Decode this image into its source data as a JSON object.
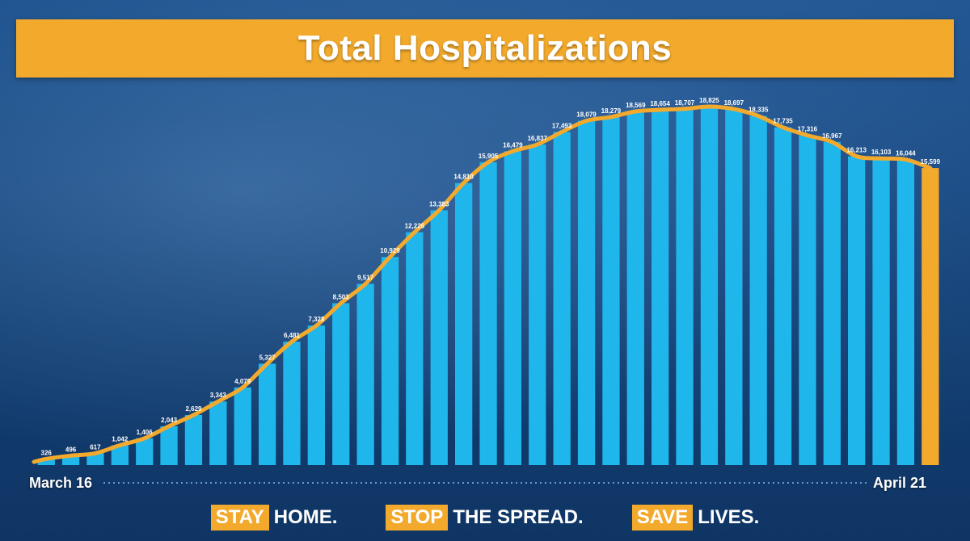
{
  "header": {
    "title": "Total Hospitalizations"
  },
  "axis": {
    "start_label": "March 16",
    "end_label": "April 21"
  },
  "slogan": [
    {
      "highlight": "STAY",
      "rest": "HOME."
    },
    {
      "highlight": "STOP",
      "rest": "THE SPREAD."
    },
    {
      "highlight": "SAVE",
      "rest": "LIVES."
    }
  ],
  "colors": {
    "bar": "#1fb6ec",
    "last_bar": "#f3aa2c",
    "trend_line": "#f3aa2c",
    "banner": "#f3aa2c"
  },
  "chart_data": {
    "type": "bar",
    "title": "Total Hospitalizations",
    "xlabel": "",
    "ylabel": "",
    "x_start": "March 16",
    "x_end": "April 21",
    "grid": false,
    "trend_line": true,
    "ylim": [
      0,
      19000
    ],
    "values": [
      326,
      496,
      617,
      1042,
      1406,
      2043,
      2629,
      3343,
      4079,
      5327,
      6481,
      7328,
      8503,
      9517,
      10929,
      12226,
      13383,
      14810,
      15905,
      16479,
      16837,
      17493,
      18079,
      18279,
      18569,
      18654,
      18707,
      18825,
      18697,
      18335,
      17735,
      17316,
      16967,
      16213,
      16103,
      16044,
      15599
    ],
    "labels": [
      "326",
      "496",
      "617",
      "1,042",
      "1,406",
      "2,043",
      "2,629",
      "3,343",
      "4,079",
      "5,327",
      "6,481",
      "7,328",
      "8,503",
      "9,517",
      "10,929",
      "12,226",
      "13,383",
      "14,810",
      "15,905",
      "16,479",
      "16,837",
      "17,493",
      "18,079",
      "18,279",
      "18,569",
      "18,654",
      "18,707",
      "18,825",
      "18,697",
      "18,335",
      "17,735",
      "17,316",
      "16,967",
      "16,213",
      "16,103",
      "16,044",
      "15,599"
    ]
  }
}
